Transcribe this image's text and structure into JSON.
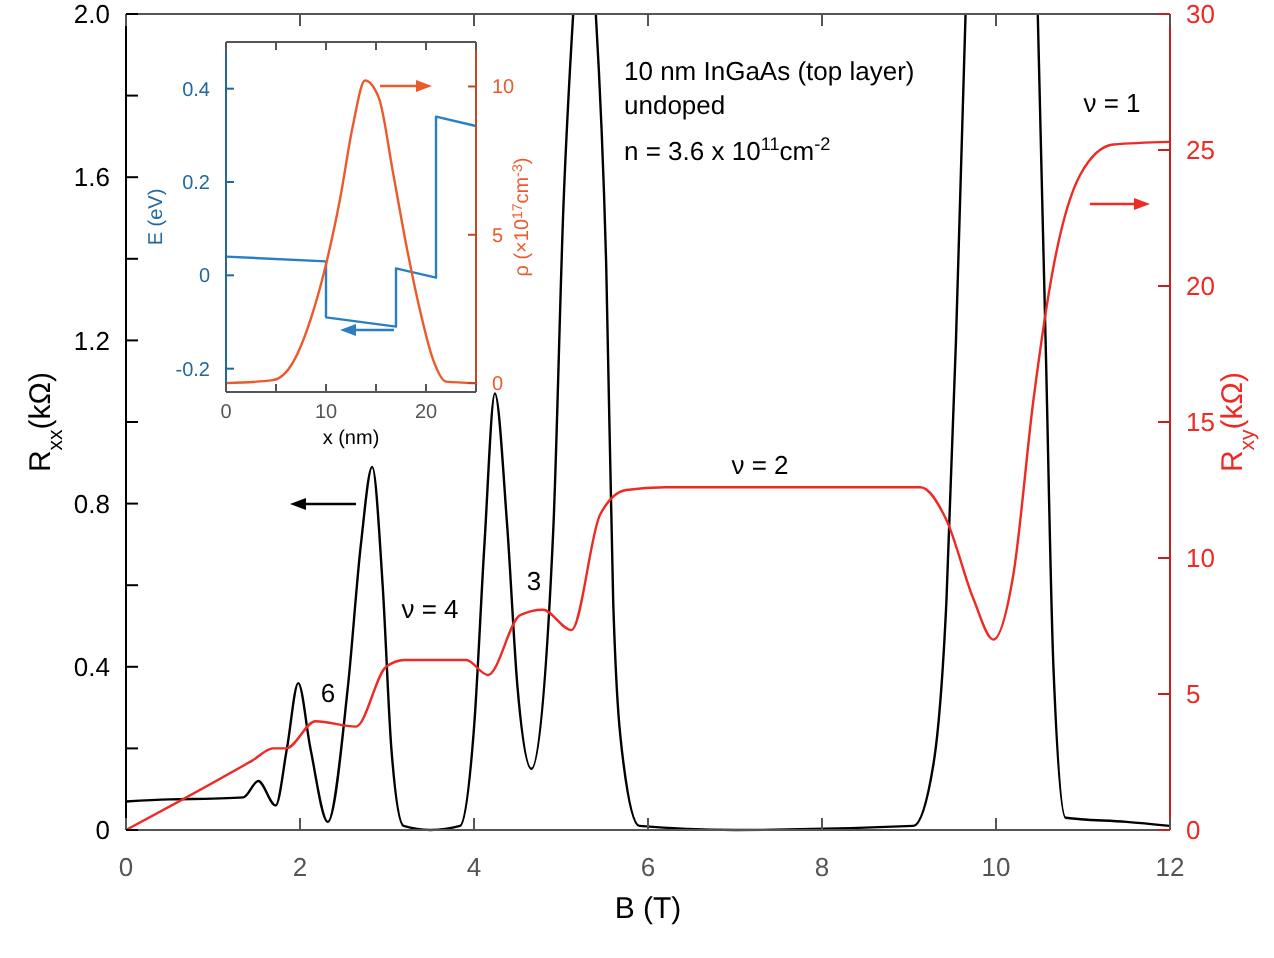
{
  "chart_data": [
    {
      "type": "line",
      "xlabel": "B (T)",
      "ylabel": "R$_{xx}$(kΩ)",
      "y2label": "R$_{xy}$(kΩ)",
      "xlim": [
        0,
        12
      ],
      "xticks": [
        0,
        2,
        4,
        6,
        8,
        10,
        12
      ],
      "ylim": [
        0,
        2
      ],
      "yticks": [
        0,
        {
          "value": 0.2,
          "label": null
        },
        0.4,
        {
          "value": 0.6,
          "label": null
        },
        0.8,
        {
          "value": 1.0,
          "label": null
        },
        1.2,
        {
          "value": 1.4,
          "label": null
        },
        1.6,
        {
          "value": 1.8,
          "label": null
        },
        {
          "value": 2,
          "label": "2.0"
        }
      ],
      "y2lim": [
        0,
        30
      ],
      "y2ticks": [
        0,
        5,
        10,
        15,
        20,
        25,
        30
      ],
      "series": [
        {
          "color": "#000000",
          "x": [
            0,
            0.5,
            1,
            1.35,
            1.52,
            1.72,
            1.85,
            1.98,
            2.12,
            2.32,
            2.55,
            2.7,
            2.83,
            2.95,
            3.05,
            3.19,
            3.5,
            3.84,
            4.0,
            4.12,
            4.24,
            4.38,
            4.5,
            4.66,
            4.91,
            5.03,
            5.14,
            5.27,
            5.4,
            5.52,
            5.6,
            5.72,
            5.9,
            7,
            9.05,
            9.28,
            9.43,
            9.54,
            9.65,
            10.06,
            10.48,
            10.57,
            10.66,
            10.8,
            11.5,
            12
          ],
          "values": [
            0.07,
            0.075,
            0.077,
            0.08,
            0.12,
            0.06,
            0.2,
            0.36,
            0.2,
            0.02,
            0.35,
            0.7,
            0.89,
            0.6,
            0.2,
            0.01,
            0,
            0.01,
            0.25,
            0.7,
            1.07,
            0.75,
            0.35,
            0.15,
            0.73,
            1.54,
            2.0,
            null,
            2.0,
            1.38,
            0.56,
            0.16,
            0.01,
            0,
            0.01,
            0.16,
            0.56,
            1.2,
            2.0,
            null,
            2.0,
            1.2,
            0.4,
            0.03,
            0.02,
            0.01
          ]
        },
        {
          "color": "#ee2a24",
          "axis": "y2",
          "x": [
            0,
            1.46,
            1.69,
            1.84,
            2.18,
            2.64,
            2.99,
            3.2,
            3.91,
            4.16,
            4.53,
            4.79,
            5.12,
            5.45,
            5.75,
            6.2,
            9.13,
            9.43,
            9.74,
            9.97,
            10.2,
            10.43,
            10.66,
            10.97,
            11.35,
            12
          ],
          "values": [
            0,
            2.57,
            3.0,
            3.0,
            4.0,
            3.8,
            6.0,
            6.25,
            6.25,
            5.7,
            7.9,
            8.1,
            7.35,
            11.6,
            12.5,
            12.6,
            12.6,
            11.4,
            8.5,
            7.0,
            9.4,
            15.8,
            20.7,
            24.1,
            25.2,
            25.3
          ]
        }
      ],
      "annotations": [
        "10 nm InGaAs (top layer)",
        "undoped",
        "n = 3.6 x 10$^{11}$cm$^{-2}$",
        "ν = 1",
        "ν = 2",
        "ν = 4",
        "3",
        "6"
      ],
      "grid": false
    },
    {
      "type": "line",
      "xlabel": "x (nm)",
      "ylabel": "E (eV)",
      "y2label": "ρ (×10$^{17}$cm$^{-3}$)",
      "xlim": [
        0,
        25
      ],
      "xticks": [
        0,
        {
          "value": 5,
          "label": null
        },
        10,
        {
          "value": 15,
          "label": null
        },
        20,
        {
          "value": 25,
          "label": null
        }
      ],
      "ylim": [
        -0.25,
        0.5
      ],
      "yticks": [
        -0.2,
        0,
        0.2,
        0.4
      ],
      "y2lim": [
        -0.3,
        11.5
      ],
      "y2ticks": [
        0,
        5,
        10
      ],
      "series": [
        {
          "color": "#2a7fc4",
          "x": [
            0,
            10,
            10,
            17,
            17,
            21,
            21,
            25
          ],
          "values": [
            0.04,
            0.03,
            -0.09,
            -0.11,
            0.015,
            -0.005,
            0.34,
            0.32
          ]
        },
        {
          "color": "#ec5a2c",
          "axis": "y2",
          "x": [
            0,
            4.7,
            6.7,
            8.7,
            10,
            11.4,
            12.7,
            13.9,
            15.3,
            16.7,
            18,
            19.3,
            20.7,
            22,
            25
          ],
          "values": [
            0,
            0.1,
            0.7,
            2.4,
            4.0,
            6.2,
            8.7,
            10.2,
            9.6,
            7.1,
            4.7,
            2.6,
            0.8,
            0.05,
            0
          ]
        }
      ],
      "grid": false
    }
  ]
}
